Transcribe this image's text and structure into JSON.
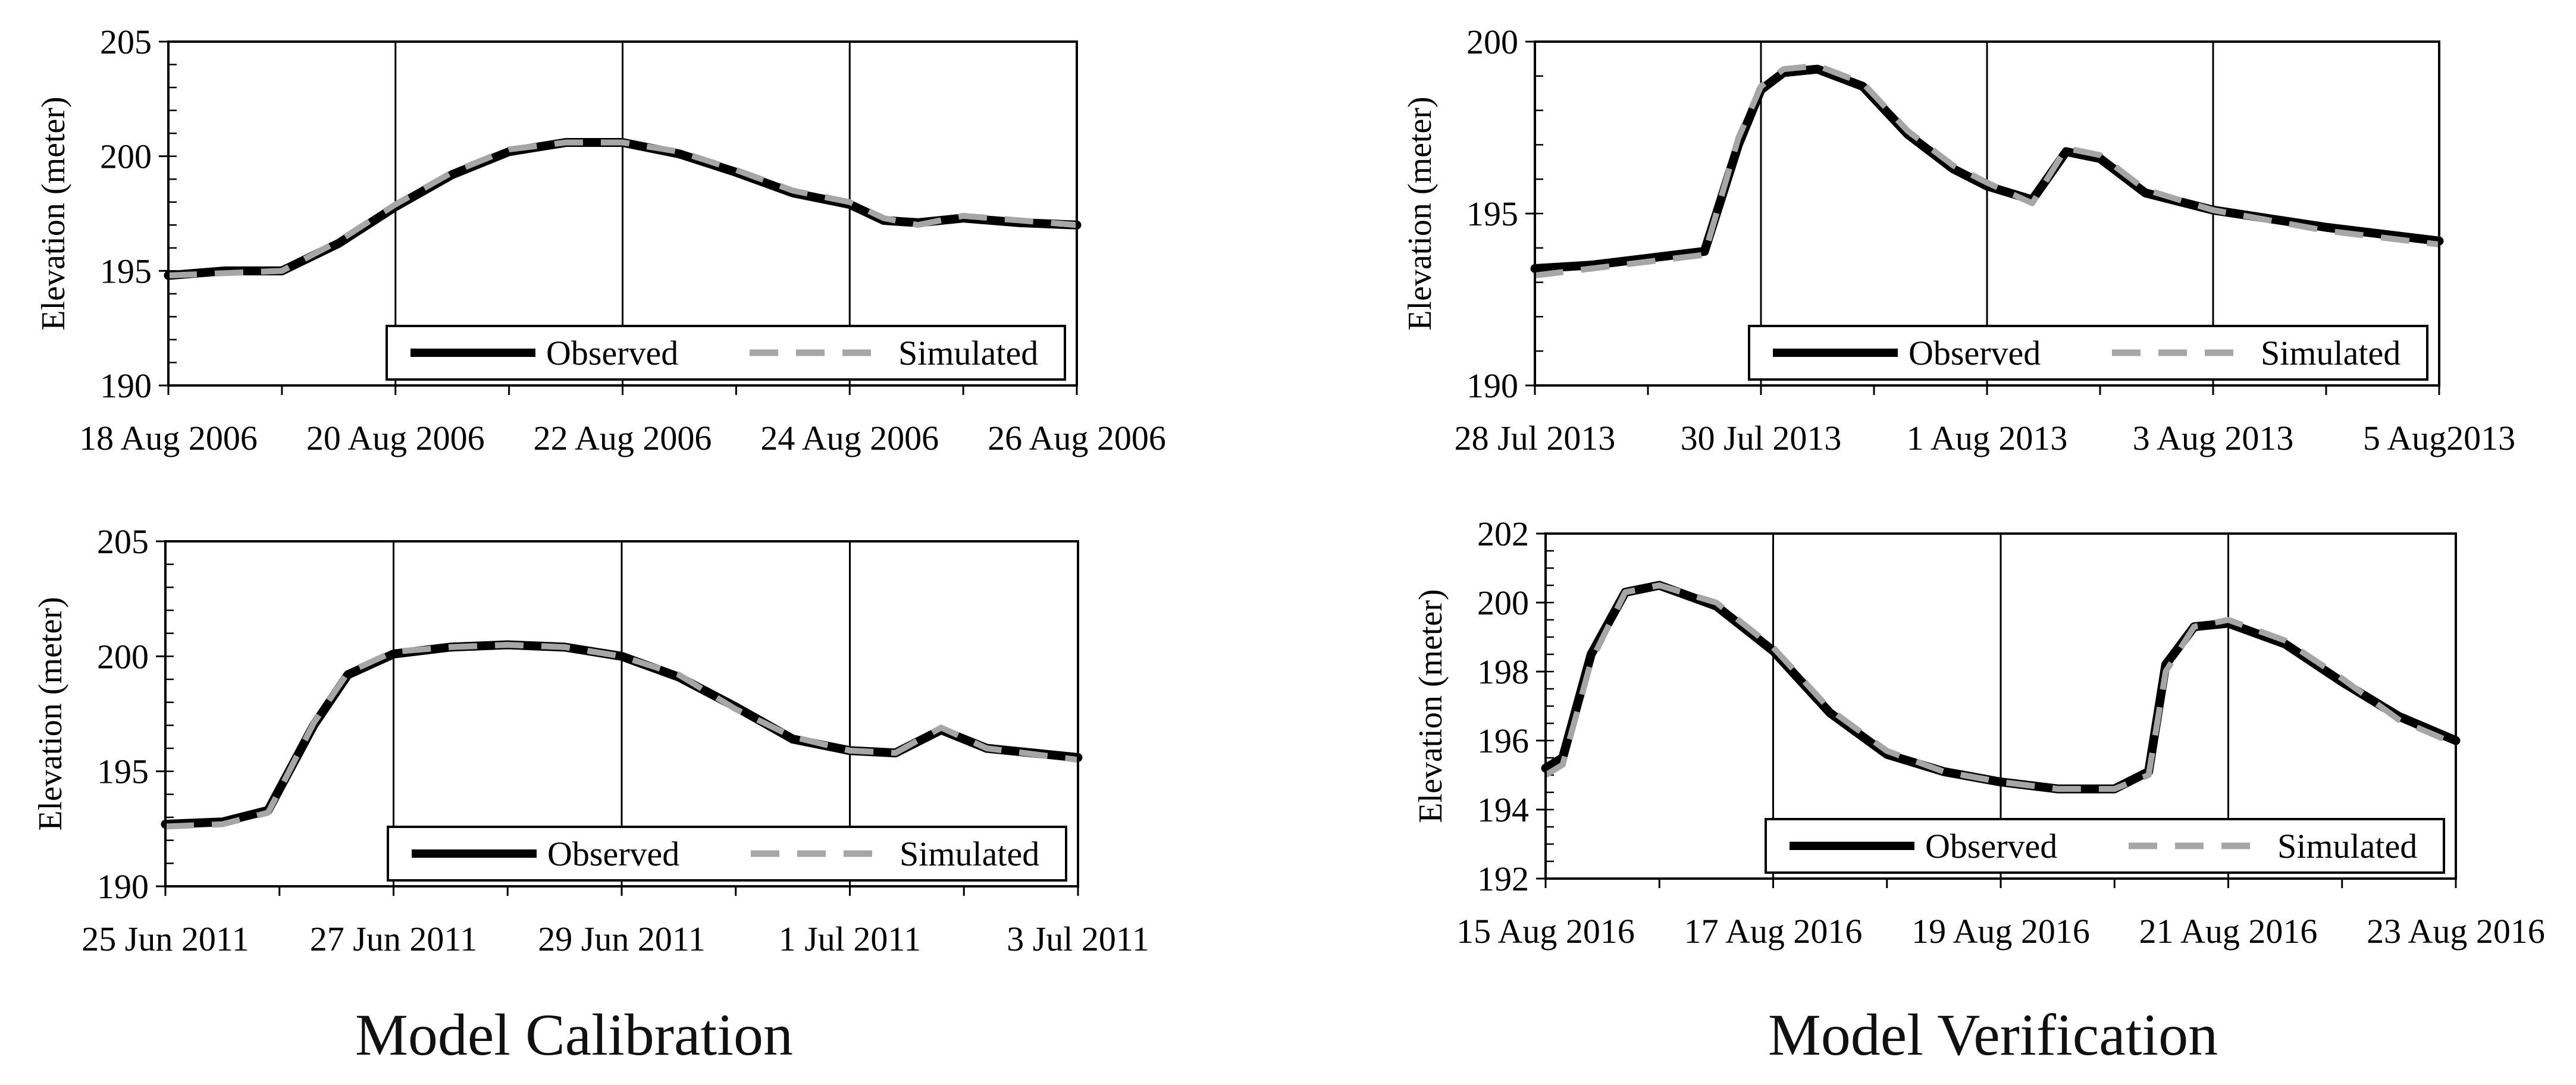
{
  "captions": {
    "left": "Model Calibration",
    "right": "Model Verification"
  },
  "colors": {
    "observed": "#000000",
    "simulated": "#a6a6a6",
    "axis": "#000000"
  },
  "chart_data": [
    {
      "type": "line",
      "title": "",
      "xlabel": "",
      "ylabel": "Elevation (meter)",
      "ylim": [
        190,
        205
      ],
      "yticks": [
        190,
        195,
        200,
        205
      ],
      "y_minor_step": 1,
      "xlim": [
        0,
        8
      ],
      "x_tick_labels": [
        "18 Aug 2006",
        "20 Aug 2006",
        "22 Aug 2006",
        "24 Aug 2006",
        "26 Aug 2006"
      ],
      "vertical_gridlines": [
        2,
        4,
        6
      ],
      "legend": {
        "position": "bottom-right",
        "observed": "Observed",
        "simulated": "Simulated"
      },
      "series": [
        {
          "name": "Observed",
          "x": [
            0,
            0.5,
            1.0,
            1.5,
            2.0,
            2.5,
            3.0,
            3.5,
            4.0,
            4.5,
            5.0,
            5.5,
            6.0,
            6.3,
            6.6,
            7.0,
            7.5,
            8.0
          ],
          "y": [
            194.8,
            195.0,
            195.0,
            196.2,
            197.8,
            199.2,
            200.2,
            200.6,
            200.6,
            200.1,
            199.3,
            198.4,
            197.9,
            197.2,
            197.1,
            197.3,
            197.1,
            197.0
          ]
        },
        {
          "name": "Simulated",
          "x": [
            0,
            0.5,
            1.0,
            1.5,
            2.0,
            2.5,
            3.0,
            3.5,
            4.0,
            4.5,
            5.0,
            5.5,
            6.0,
            6.3,
            6.6,
            7.0,
            7.5,
            8.0
          ],
          "y": [
            194.8,
            194.9,
            195.0,
            196.3,
            197.9,
            199.3,
            200.3,
            200.6,
            200.6,
            200.2,
            199.4,
            198.5,
            198.0,
            197.3,
            197.0,
            197.4,
            197.2,
            197.0
          ]
        }
      ]
    },
    {
      "type": "line",
      "title": "",
      "xlabel": "",
      "ylabel": "Elevation (meter)",
      "ylim": [
        190,
        200
      ],
      "yticks": [
        190,
        195,
        200
      ],
      "y_minor_step": 1,
      "xlim": [
        0,
        8
      ],
      "x_tick_labels": [
        "28 Jul 2013",
        "30 Jul 2013",
        "1 Aug 2013",
        "3 Aug 2013",
        "5 Aug2013"
      ],
      "vertical_gridlines": [
        2,
        4,
        6
      ],
      "legend": {
        "position": "bottom-right",
        "observed": "Observed",
        "simulated": "Simulated"
      },
      "series": [
        {
          "name": "Observed",
          "x": [
            0,
            0.5,
            1.0,
            1.5,
            1.8,
            2.0,
            2.2,
            2.5,
            2.9,
            3.3,
            3.7,
            4.0,
            4.4,
            4.7,
            5.0,
            5.4,
            6.0,
            7.0,
            8.0
          ],
          "y": [
            193.4,
            193.5,
            193.7,
            193.9,
            197.0,
            198.6,
            199.1,
            199.2,
            198.7,
            197.3,
            196.3,
            195.8,
            195.4,
            196.8,
            196.6,
            195.6,
            195.1,
            194.6,
            194.2
          ]
        },
        {
          "name": "Simulated",
          "x": [
            0,
            0.5,
            1.0,
            1.5,
            1.8,
            2.0,
            2.2,
            2.5,
            2.9,
            3.3,
            3.7,
            4.0,
            4.4,
            4.7,
            5.0,
            5.4,
            6.0,
            7.0,
            8.0
          ],
          "y": [
            193.2,
            193.4,
            193.6,
            193.8,
            197.2,
            198.7,
            199.2,
            199.3,
            198.8,
            197.4,
            196.4,
            195.9,
            195.3,
            196.9,
            196.7,
            195.7,
            195.1,
            194.5,
            194.1
          ]
        }
      ]
    },
    {
      "type": "line",
      "title": "",
      "xlabel": "",
      "ylabel": "Elevation (meter)",
      "ylim": [
        190,
        205
      ],
      "yticks": [
        190,
        195,
        200,
        205
      ],
      "y_minor_step": 1,
      "xlim": [
        0,
        8
      ],
      "x_tick_labels": [
        "25 Jun 2011",
        "27 Jun 2011",
        "29 Jun 2011",
        "1 Jul 2011",
        "3 Jul 2011"
      ],
      "vertical_gridlines": [
        2,
        4,
        6
      ],
      "legend": {
        "position": "bottom-right",
        "observed": "Observed",
        "simulated": "Simulated"
      },
      "series": [
        {
          "name": "Observed",
          "x": [
            0,
            0.5,
            0.9,
            1.3,
            1.6,
            2.0,
            2.5,
            3.0,
            3.5,
            4.0,
            4.5,
            5.0,
            5.5,
            6.0,
            6.4,
            6.8,
            7.2,
            8.0
          ],
          "y": [
            192.7,
            192.8,
            193.3,
            197.0,
            199.2,
            200.1,
            200.4,
            200.5,
            200.4,
            200.0,
            199.1,
            197.8,
            196.4,
            195.9,
            195.8,
            196.8,
            196.0,
            195.6
          ]
        },
        {
          "name": "Simulated",
          "x": [
            0,
            0.5,
            0.9,
            1.3,
            1.6,
            2.0,
            2.5,
            3.0,
            3.5,
            4.0,
            4.5,
            5.0,
            5.5,
            6.0,
            6.4,
            6.8,
            7.2,
            8.0
          ],
          "y": [
            192.6,
            192.7,
            193.2,
            197.1,
            199.3,
            200.2,
            200.4,
            200.5,
            200.4,
            200.0,
            199.2,
            197.7,
            196.5,
            195.9,
            195.8,
            196.9,
            196.0,
            195.5
          ]
        }
      ]
    },
    {
      "type": "line",
      "title": "",
      "xlabel": "",
      "ylabel": "Elevation (meter)",
      "ylim": [
        192,
        202
      ],
      "yticks": [
        192,
        194,
        196,
        198,
        200,
        202
      ],
      "y_minor_step": 0.5,
      "xlim": [
        0,
        8
      ],
      "x_tick_labels": [
        "15 Aug 2016",
        "17 Aug 2016",
        "19 Aug 2016",
        "21 Aug 2016",
        "23 Aug 2016"
      ],
      "vertical_gridlines": [
        2,
        4,
        6
      ],
      "legend": {
        "position": "bottom-right",
        "observed": "Observed",
        "simulated": "Simulated"
      },
      "series": [
        {
          "name": "Observed",
          "x": [
            0,
            0.15,
            0.4,
            0.7,
            1.0,
            1.5,
            2.0,
            2.5,
            3.0,
            3.5,
            4.0,
            4.5,
            5.0,
            5.3,
            5.45,
            5.7,
            6.0,
            6.5,
            7.0,
            7.5,
            8.0
          ],
          "y": [
            195.2,
            195.5,
            198.5,
            200.3,
            200.5,
            199.9,
            198.6,
            196.8,
            195.6,
            195.1,
            194.8,
            194.6,
            194.6,
            195.1,
            198.2,
            199.3,
            199.4,
            198.8,
            197.7,
            196.7,
            196.0
          ]
        },
        {
          "name": "Simulated",
          "x": [
            0,
            0.15,
            0.4,
            0.7,
            1.0,
            1.5,
            2.0,
            2.5,
            3.0,
            3.5,
            4.0,
            4.5,
            5.0,
            5.3,
            5.45,
            5.7,
            6.0,
            6.5,
            7.0,
            7.5,
            8.0
          ],
          "y": [
            195.0,
            195.3,
            198.3,
            200.3,
            200.5,
            200.0,
            198.7,
            196.9,
            195.7,
            195.1,
            194.8,
            194.6,
            194.6,
            195.0,
            198.0,
            199.3,
            199.5,
            198.9,
            197.8,
            196.6,
            195.9
          ]
        }
      ]
    }
  ]
}
